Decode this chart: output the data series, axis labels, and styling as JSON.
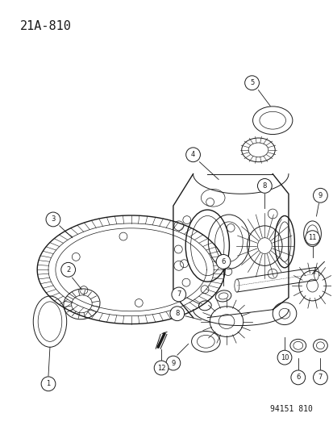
{
  "title": "21A-810",
  "footer": "94151 810",
  "bg_color": "#ffffff",
  "line_color": "#1a1a1a",
  "title_fontsize": 11,
  "footer_fontsize": 7,
  "fig_width": 4.14,
  "fig_height": 5.33,
  "dpi": 100
}
